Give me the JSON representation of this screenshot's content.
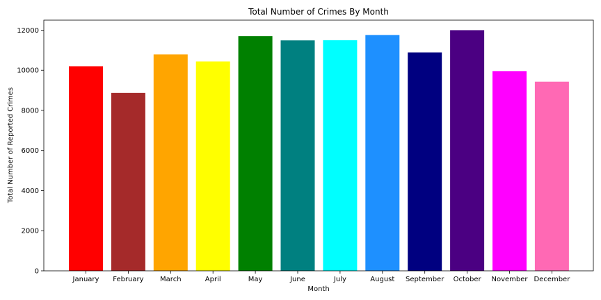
{
  "chart_data": {
    "type": "bar",
    "title": "Total Number of Crimes By Month",
    "xlabel": "Month",
    "ylabel": "Total Number of Reported Crimes",
    "categories": [
      "January",
      "February",
      "March",
      "April",
      "May",
      "June",
      "July",
      "August",
      "September",
      "October",
      "November",
      "December"
    ],
    "values": [
      10200,
      8870,
      10790,
      10440,
      11700,
      11490,
      11500,
      11760,
      10890,
      12000,
      9960,
      9430
    ],
    "colors": [
      "#ff0000",
      "#a52a2a",
      "#ffa500",
      "#ffff00",
      "#008000",
      "#008080",
      "#00ffff",
      "#1e90ff",
      "#000080",
      "#4b0082",
      "#ff00ff",
      "#ff69b4"
    ],
    "ylim": [
      0,
      12500
    ],
    "yticks": [
      0,
      2000,
      4000,
      6000,
      8000,
      10000,
      12000
    ],
    "grid": false,
    "legend": "none"
  }
}
